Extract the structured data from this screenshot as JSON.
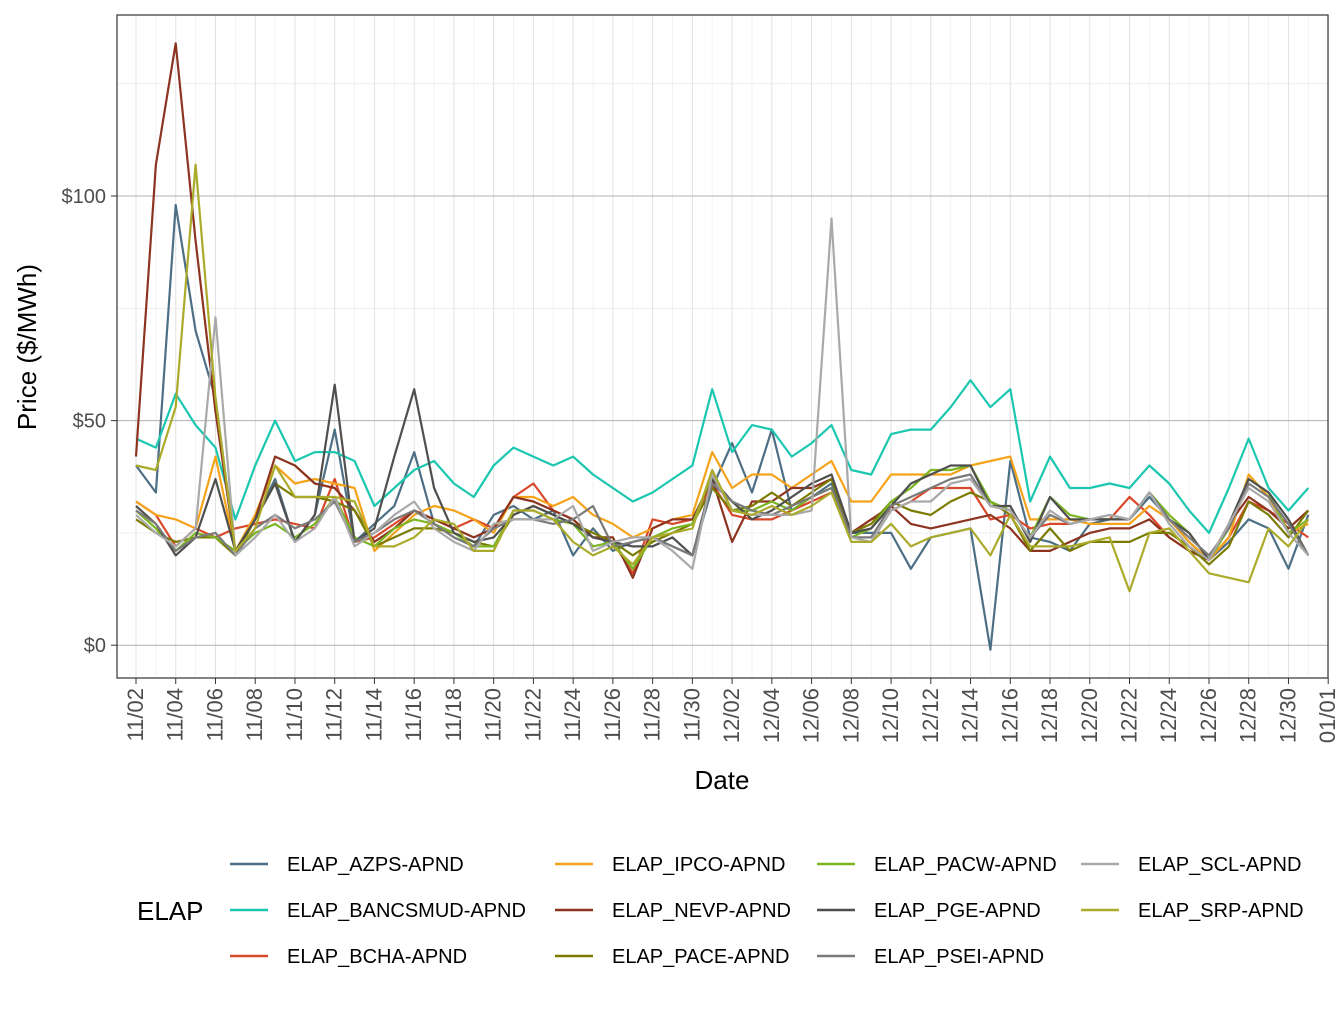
{
  "chart_data": {
    "type": "line",
    "x_label": "Date",
    "y_label": "Price ($/MWh)",
    "legend_title": "ELAP",
    "categories": [
      "11/02",
      null,
      "11/04",
      null,
      "11/06",
      null,
      "11/08",
      null,
      "11/10",
      null,
      "11/12",
      null,
      "11/14",
      null,
      "11/16",
      null,
      "11/18",
      null,
      "11/20",
      null,
      "11/22",
      null,
      "11/24",
      null,
      "11/26",
      null,
      "11/28",
      null,
      "11/30",
      null,
      "12/02",
      null,
      "12/04",
      null,
      "12/06",
      null,
      "12/08",
      null,
      "12/10",
      null,
      "12/12",
      null,
      "12/14",
      null,
      "12/16",
      null,
      "12/18",
      null,
      "12/20",
      null,
      "12/22",
      null,
      "12/24",
      null,
      "12/26",
      null,
      "12/28",
      null,
      "12/30",
      null,
      "01/01"
    ],
    "ylim": [
      -7.3,
      140.3
    ],
    "yticks": [
      {
        "value": 0,
        "label": "$0"
      },
      {
        "value": 50,
        "label": "$50"
      },
      {
        "value": 100,
        "label": "$100"
      }
    ],
    "grid": true,
    "series": [
      {
        "name": "ELAP_AZPS-APND",
        "color": "#4d6f85",
        "values": [
          40,
          34,
          98,
          70,
          55,
          21,
          28,
          37,
          23,
          29,
          48,
          23,
          27,
          31,
          43,
          27,
          24,
          22,
          29,
          31,
          28,
          30,
          20,
          26,
          21,
          23,
          24,
          22,
          20,
          35,
          45,
          34,
          48,
          30,
          33,
          36,
          25,
          25,
          25,
          17,
          24,
          25,
          26,
          -1,
          41,
          24,
          23,
          21,
          27,
          28,
          28,
          33,
          28,
          23,
          19,
          23,
          28,
          26,
          17,
          29,
          null
        ]
      },
      {
        "name": "ELAP_BANCSMUD-APND",
        "color": "#1bc7b0",
        "values": [
          46,
          44,
          56,
          49,
          44,
          28,
          40,
          50,
          41,
          43,
          43,
          41,
          31,
          35,
          39,
          41,
          36,
          33,
          40,
          44,
          42,
          40,
          42,
          38,
          35,
          32,
          34,
          37,
          40,
          57,
          43,
          49,
          48,
          42,
          45,
          49,
          39,
          38,
          47,
          48,
          48,
          53,
          59,
          53,
          57,
          32,
          42,
          35,
          35,
          36,
          35,
          40,
          36,
          30,
          25,
          35,
          46,
          35,
          30,
          35,
          null
        ]
      },
      {
        "name": "ELAP_BCHA-APND",
        "color": "#d9482b",
        "values": [
          32,
          29,
          22,
          26,
          24,
          26,
          27,
          28,
          27,
          26,
          37,
          23,
          24,
          27,
          30,
          28,
          26,
          28,
          26,
          33,
          36,
          30,
          28,
          24,
          23,
          16,
          28,
          27,
          28,
          36,
          29,
          28,
          28,
          30,
          32,
          34,
          25,
          28,
          30,
          32,
          35,
          35,
          35,
          28,
          29,
          26,
          27,
          27,
          28,
          28,
          33,
          29,
          24,
          21,
          19,
          24,
          32,
          30,
          27,
          24,
          null
        ]
      },
      {
        "name": "ELAP_IPCO-APND",
        "color": "#f5a31a",
        "values": [
          32,
          29,
          28,
          26,
          42,
          21,
          29,
          40,
          36,
          37,
          36,
          35,
          21,
          25,
          29,
          31,
          30,
          28,
          25,
          33,
          33,
          31,
          33,
          29,
          27,
          24,
          26,
          28,
          29,
          43,
          35,
          38,
          38,
          35,
          38,
          41,
          32,
          32,
          38,
          38,
          38,
          38,
          40,
          41,
          42,
          28,
          28,
          28,
          27,
          27,
          27,
          31,
          28,
          23,
          19,
          24,
          38,
          33,
          25,
          27,
          null
        ]
      },
      {
        "name": "ELAP_NEVP-APND",
        "color": "#8c3420",
        "values": [
          42,
          107,
          134,
          90,
          52,
          21,
          28,
          42,
          40,
          36,
          35,
          30,
          23,
          26,
          30,
          28,
          26,
          24,
          26,
          33,
          32,
          30,
          28,
          24,
          24,
          15,
          26,
          28,
          28,
          37,
          23,
          32,
          32,
          35,
          35,
          37,
          25,
          28,
          31,
          27,
          26,
          27,
          28,
          29,
          26,
          21,
          21,
          23,
          25,
          26,
          26,
          28,
          24,
          21,
          19,
          27,
          33,
          30,
          26,
          30,
          null
        ]
      },
      {
        "name": "ELAP_PACE-APND",
        "color": "#7b7b00",
        "values": [
          28,
          25,
          23,
          24,
          24,
          20,
          28,
          36,
          33,
          33,
          32,
          30,
          22,
          24,
          26,
          26,
          25,
          23,
          22,
          29,
          31,
          29,
          27,
          25,
          23,
          20,
          23,
          25,
          27,
          35,
          30,
          31,
          34,
          31,
          34,
          37,
          25,
          27,
          32,
          30,
          29,
          32,
          34,
          32,
          29,
          21,
          26,
          21,
          23,
          23,
          23,
          25,
          25,
          22,
          18,
          22,
          32,
          29,
          24,
          30,
          null
        ]
      },
      {
        "name": "ELAP_PACW-APND",
        "color": "#7bb521",
        "values": [
          30,
          26,
          21,
          25,
          24,
          21,
          25,
          27,
          24,
          27,
          33,
          24,
          22,
          26,
          28,
          27,
          25,
          22,
          22,
          30,
          30,
          28,
          27,
          22,
          23,
          17,
          24,
          26,
          27,
          38,
          30,
          30,
          32,
          30,
          33,
          35,
          24,
          26,
          32,
          35,
          39,
          39,
          40,
          32,
          30,
          24,
          33,
          29,
          28,
          28,
          28,
          34,
          29,
          25,
          19,
          26,
          37,
          34,
          25,
          28,
          null
        ]
      },
      {
        "name": "ELAP_PGE-APND",
        "color": "#4f4f4f",
        "values": [
          31,
          27,
          20,
          24,
          37,
          21,
          28,
          36,
          23,
          29,
          58,
          23,
          26,
          42,
          57,
          35,
          25,
          23,
          24,
          29,
          31,
          29,
          27,
          24,
          23,
          22,
          22,
          24,
          20,
          37,
          32,
          28,
          30,
          33,
          36,
          38,
          25,
          26,
          31,
          36,
          38,
          40,
          40,
          31,
          31,
          23,
          33,
          28,
          28,
          28,
          28,
          34,
          28,
          25,
          19,
          27,
          37,
          34,
          28,
          20,
          null
        ]
      },
      {
        "name": "ELAP_PSEI-APND",
        "color": "#7a7a7a",
        "values": [
          30,
          27,
          21,
          24,
          25,
          20,
          26,
          29,
          26,
          28,
          32,
          23,
          25,
          28,
          30,
          27,
          24,
          22,
          26,
          28,
          28,
          27,
          28,
          31,
          22,
          23,
          24,
          22,
          20,
          36,
          32,
          30,
          29,
          31,
          33,
          35,
          24,
          24,
          31,
          33,
          35,
          37,
          38,
          31,
          30,
          24,
          29,
          27,
          28,
          29,
          28,
          34,
          28,
          24,
          20,
          26,
          36,
          33,
          27,
          20,
          null
        ]
      },
      {
        "name": "ELAP_SCL-APND",
        "color": "#a9a9a9",
        "values": [
          29,
          25,
          22,
          26,
          73,
          20,
          24,
          29,
          23,
          26,
          33,
          22,
          25,
          29,
          32,
          26,
          23,
          21,
          27,
          28,
          28,
          28,
          31,
          21,
          23,
          24,
          24,
          21,
          17,
          38,
          30,
          29,
          29,
          29,
          30,
          95,
          24,
          23,
          30,
          32,
          32,
          36,
          37,
          31,
          30,
          24,
          30,
          27,
          28,
          29,
          28,
          34,
          27,
          22,
          19,
          27,
          35,
          32,
          25,
          20,
          null
        ]
      },
      {
        "name": "ELAP_SRP-APND",
        "color": "#abab2b",
        "values": [
          40,
          39,
          53,
          107,
          55,
          21,
          26,
          40,
          33,
          33,
          33,
          32,
          22,
          22,
          24,
          28,
          27,
          21,
          21,
          30,
          30,
          28,
          23,
          20,
          22,
          18,
          24,
          25,
          26,
          39,
          30,
          29,
          31,
          29,
          31,
          34,
          23,
          23,
          27,
          22,
          24,
          25,
          26,
          20,
          29,
          22,
          22,
          22,
          23,
          24,
          12,
          25,
          26,
          21,
          16,
          15,
          14,
          26,
          22,
          28,
          null
        ]
      }
    ]
  }
}
